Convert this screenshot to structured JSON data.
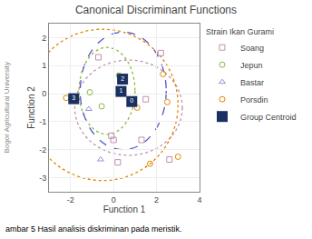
{
  "chart_data": {
    "type": "scatter",
    "title": "Canonical Discriminant Functions",
    "xlabel": "Function 1",
    "ylabel": "Function 2",
    "xlim": [
      -3,
      4
    ],
    "xticks": [
      -2,
      0,
      2,
      4
    ],
    "ylim": [
      -3.5,
      2.5
    ],
    "yticks": [
      -3,
      -2,
      -1,
      0,
      1,
      2
    ],
    "grid": true,
    "legend": "right",
    "legend_title": "Strain Ikan Gurami",
    "series": [
      {
        "name": "Soang",
        "color": "#c090b0",
        "marker": "square-open",
        "x": [
          -0.7,
          0.0,
          0.2,
          -0.1,
          2.2,
          1.5,
          2.6,
          1.3
        ],
        "values": [
          1.3,
          -1.65,
          -2.45,
          -1.5,
          1.45,
          -0.2,
          -2.35,
          -1.65
        ]
      },
      {
        "name": "Jepun",
        "color": "#88bb44",
        "marker": "circle-open",
        "x": [
          -1.1,
          -0.55,
          0.4,
          0.25
        ],
        "values": [
          0.05,
          -0.45,
          0.55,
          0.65
        ]
      },
      {
        "name": "Bastar",
        "color": "#9090dd",
        "marker": "triangle-up-open",
        "x": [
          -1.15,
          -0.6,
          0.45
        ],
        "values": [
          -0.55,
          -2.35,
          0.6
        ]
      },
      {
        "name": "Porsdin",
        "color": "#dd8800",
        "marker": "circle-open",
        "x": [
          -2.2,
          0.85,
          2.3,
          3.0,
          2.5,
          1.7,
          1.1
        ],
        "values": [
          -0.15,
          -0.35,
          0.7,
          -2.25,
          -0.3,
          -2.5,
          -0.5
        ]
      },
      {
        "name": "Group Centroid",
        "color": "#1a3060",
        "marker": "square",
        "x": [
          0.85,
          0.35,
          0.42,
          -1.85
        ],
        "values": [
          -0.28,
          0.08,
          0.52,
          -0.18
        ],
        "labels": [
          "0",
          "1",
          "2",
          "3"
        ]
      }
    ],
    "ellipses": [
      {
        "cx": 0.7,
        "cy": -0.5,
        "rx": 2.5,
        "ry": 1.7,
        "color": "#c090b0",
        "line_style": "dotted"
      },
      {
        "cx": -0.3,
        "cy": 0.1,
        "rx": 1.3,
        "ry": 1.55,
        "color": "#88bb44",
        "line_style": "dotted"
      },
      {
        "cx": 0.45,
        "cy": 0.1,
        "rx": 2.0,
        "ry": 2.1,
        "color": "#5555cc",
        "line_style": "dashed"
      },
      {
        "cx": -0.5,
        "cy": -0.4,
        "rx": 3.5,
        "ry": 2.7,
        "color": "#dd8800",
        "line_style": "dotted"
      }
    ],
    "caption": "ambar 5 Hasil analisis diskriminan pada meristik.",
    "watermark": "Bogor Agricultural University"
  }
}
